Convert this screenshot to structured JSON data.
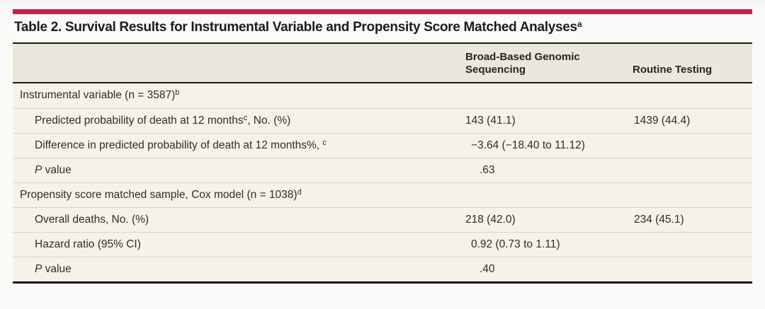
{
  "page": {
    "accent_color": "#c2234b",
    "header_bg_color": "#eae8dc",
    "body_bg_color": "#f4f2e9"
  },
  "table": {
    "title": "Table 2. Survival Results for Instrumental Variable and Propensity Score Matched Analyses",
    "title_sup": "a",
    "header": {
      "col2_label": "Broad-Based Genomic Sequencing",
      "col3_label": "Routine Testing"
    },
    "rows": [
      {
        "kind": "section",
        "pre": "Instrumental variable (n = 3587)",
        "sup": "b"
      },
      {
        "kind": "data",
        "pre": "Predicted probability of death at 12 months",
        "sup": "c",
        "post": ", No. (%)",
        "col2": "143 (41.1)",
        "col3": "1439 (44.4)"
      },
      {
        "kind": "span",
        "pre": "Difference in predicted probability of death at 12 months%, ",
        "sup": "c",
        "span": "−3.64 (−18.40 to 11.12)"
      },
      {
        "kind": "pvalue",
        "italic": "P",
        "post": " value",
        "span": ".63"
      },
      {
        "kind": "section",
        "pre": "Propensity score matched sample, Cox model (n = 1038)",
        "sup": "d"
      },
      {
        "kind": "data",
        "pre": "Overall deaths, No. (%)",
        "col2": "218 (42.0)",
        "col3": "234 (45.1)"
      },
      {
        "kind": "span",
        "pre": "Hazard ratio (95% CI)",
        "span": "0.92 (0.73 to 1.11)"
      },
      {
        "kind": "pvalue",
        "italic": "P",
        "post": " value",
        "span": ".40"
      }
    ]
  }
}
